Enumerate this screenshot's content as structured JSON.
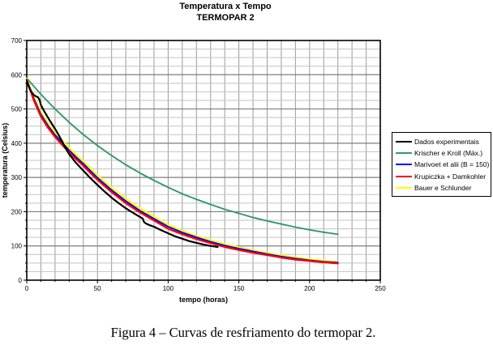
{
  "title": {
    "line1": "Temperatura x Tempo",
    "line2": "TERMOPAR 2"
  },
  "caption": "Figura 4 – Curvas de resfriamento do termopar 2.",
  "chart_data": {
    "type": "line",
    "title": "Temperatura x Tempo",
    "subtitle": "TERMOPAR 2",
    "xlabel": "tempo (horas)",
    "ylabel": "temperatura (Celsius)",
    "xlim": [
      0,
      250
    ],
    "ylim": [
      0,
      700
    ],
    "x_major_ticks": [
      0,
      50,
      100,
      150,
      200,
      250
    ],
    "y_major_ticks": [
      0,
      100,
      200,
      300,
      400,
      500,
      600,
      700
    ],
    "x_minor_step": 10,
    "y_minor_step": 25,
    "grid": {
      "vertical_color": "#9a9a9a",
      "minor_color": "#c3c3c3",
      "major_color": "#7d7d7d",
      "border_color": "#000000"
    },
    "legend_position": "right",
    "series": [
      {
        "name": "Dados experimentais",
        "color": "#000000",
        "width": 2.2,
        "points": [
          [
            0,
            585
          ],
          [
            1,
            570
          ],
          [
            2,
            560
          ],
          [
            3,
            552
          ],
          [
            4,
            546
          ],
          [
            5,
            541
          ],
          [
            6,
            538
          ],
          [
            7,
            536
          ],
          [
            8,
            534
          ],
          [
            9,
            527
          ],
          [
            10,
            512
          ],
          [
            12,
            496
          ],
          [
            14,
            482
          ],
          [
            16,
            468
          ],
          [
            18,
            455
          ],
          [
            20,
            442
          ],
          [
            22,
            428
          ],
          [
            25,
            405
          ],
          [
            28,
            382
          ],
          [
            30,
            368
          ],
          [
            35,
            342
          ],
          [
            40,
            320
          ],
          [
            45,
            298
          ],
          [
            50,
            278
          ],
          [
            55,
            259
          ],
          [
            60,
            241
          ],
          [
            65,
            225
          ],
          [
            70,
            210
          ],
          [
            75,
            197
          ],
          [
            80,
            185
          ],
          [
            82,
            180
          ],
          [
            83,
            169
          ],
          [
            85,
            164
          ],
          [
            88,
            159
          ],
          [
            90,
            156
          ],
          [
            95,
            146
          ],
          [
            100,
            137
          ],
          [
            105,
            128
          ],
          [
            110,
            121
          ],
          [
            115,
            114
          ],
          [
            120,
            109
          ],
          [
            125,
            104
          ],
          [
            130,
            100
          ],
          [
            135,
            97
          ]
        ]
      },
      {
        "name": "Krischer e Kroll (Máx.)",
        "color": "#339966",
        "width": 1.9,
        "points": [
          [
            0,
            590
          ],
          [
            10,
            543
          ],
          [
            20,
            500
          ],
          [
            30,
            461
          ],
          [
            40,
            425
          ],
          [
            50,
            393
          ],
          [
            60,
            364
          ],
          [
            70,
            337
          ],
          [
            80,
            313
          ],
          [
            90,
            291
          ],
          [
            100,
            271
          ],
          [
            110,
            252
          ],
          [
            120,
            236
          ],
          [
            130,
            221
          ],
          [
            140,
            207
          ],
          [
            150,
            195
          ],
          [
            160,
            183
          ],
          [
            170,
            173
          ],
          [
            180,
            164
          ],
          [
            190,
            155
          ],
          [
            200,
            147
          ],
          [
            210,
            140
          ],
          [
            220,
            134
          ]
        ]
      },
      {
        "name": "Marivoet et alii (B = 150)",
        "color": "#0000ff",
        "width": 2.0,
        "points": [
          [
            0,
            585
          ],
          [
            5,
            530
          ],
          [
            10,
            484
          ],
          [
            15,
            451
          ],
          [
            20,
            424
          ],
          [
            25,
            401
          ],
          [
            30,
            379
          ],
          [
            35,
            359
          ],
          [
            40,
            340
          ],
          [
            45,
            319
          ],
          [
            50,
            299
          ],
          [
            60,
            263
          ],
          [
            70,
            231
          ],
          [
            80,
            203
          ],
          [
            90,
            179
          ],
          [
            100,
            156
          ],
          [
            110,
            139
          ],
          [
            120,
            125
          ],
          [
            130,
            112
          ],
          [
            140,
            101
          ],
          [
            150,
            92
          ],
          [
            160,
            84
          ],
          [
            170,
            76
          ],
          [
            180,
            69
          ],
          [
            190,
            63
          ],
          [
            200,
            58
          ],
          [
            210,
            54
          ],
          [
            220,
            51
          ]
        ]
      },
      {
        "name": "Krupiczka + Damkohler",
        "color": "#ff0000",
        "width": 2.2,
        "points": [
          [
            0,
            585
          ],
          [
            5,
            525
          ],
          [
            10,
            478
          ],
          [
            15,
            445
          ],
          [
            20,
            418
          ],
          [
            25,
            395
          ],
          [
            30,
            373
          ],
          [
            35,
            353
          ],
          [
            40,
            334
          ],
          [
            45,
            313
          ],
          [
            50,
            293
          ],
          [
            60,
            257
          ],
          [
            70,
            225
          ],
          [
            80,
            198
          ],
          [
            90,
            174
          ],
          [
            100,
            150
          ],
          [
            110,
            134
          ],
          [
            120,
            120
          ],
          [
            130,
            108
          ],
          [
            140,
            97
          ],
          [
            150,
            88
          ],
          [
            160,
            80
          ],
          [
            170,
            73
          ],
          [
            180,
            66
          ],
          [
            190,
            60
          ],
          [
            200,
            56
          ],
          [
            210,
            52
          ],
          [
            220,
            49
          ]
        ]
      },
      {
        "name": "Bauer e Schlunder",
        "color": "#ffff00",
        "width": 2.4,
        "points": [
          [
            0,
            588
          ],
          [
            5,
            536
          ],
          [
            10,
            491
          ],
          [
            15,
            458
          ],
          [
            20,
            431
          ],
          [
            25,
            408
          ],
          [
            30,
            386
          ],
          [
            35,
            366
          ],
          [
            40,
            347
          ],
          [
            45,
            326
          ],
          [
            50,
            306
          ],
          [
            60,
            270
          ],
          [
            70,
            238
          ],
          [
            80,
            210
          ],
          [
            90,
            185
          ],
          [
            100,
            161
          ],
          [
            110,
            144
          ],
          [
            120,
            129
          ],
          [
            130,
            116
          ],
          [
            140,
            105
          ],
          [
            150,
            96
          ],
          [
            160,
            87
          ],
          [
            170,
            79
          ],
          [
            180,
            72
          ],
          [
            190,
            66
          ],
          [
            200,
            61
          ],
          [
            210,
            57
          ],
          [
            218,
            54
          ]
        ]
      }
    ]
  }
}
